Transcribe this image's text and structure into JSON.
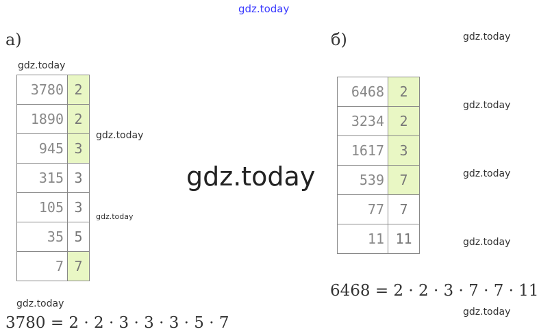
{
  "watermark": "gdz.today",
  "part_a": {
    "label": "а)",
    "rows": [
      {
        "n": "3780",
        "f": "2",
        "hl": true
      },
      {
        "n": "1890",
        "f": "2",
        "hl": true
      },
      {
        "n": "945",
        "f": "3",
        "hl": true
      },
      {
        "n": "315",
        "f": "3",
        "hl": false
      },
      {
        "n": "105",
        "f": "3",
        "hl": false
      },
      {
        "n": "35",
        "f": "5",
        "hl": false
      },
      {
        "n": "7",
        "f": "7",
        "hl": true
      }
    ],
    "equation": "3780 = 2 · 2 · 3 · 3 · 3 · 5 · 7"
  },
  "part_b": {
    "label": "б)",
    "rows": [
      {
        "n": "6468",
        "f": "2",
        "hl": true
      },
      {
        "n": "3234",
        "f": "2",
        "hl": true
      },
      {
        "n": "1617",
        "f": "3",
        "hl": true
      },
      {
        "n": "539",
        "f": "7",
        "hl": true
      },
      {
        "n": "77",
        "f": "7",
        "hl": false
      },
      {
        "n": "11",
        "f": "11",
        "hl": false
      }
    ],
    "equation": "6468 = 2 · 2 · 3 · 7 · 7 · 11"
  },
  "colors": {
    "highlight": "#e9f7c4",
    "watermark_top": "#3a3aff"
  }
}
